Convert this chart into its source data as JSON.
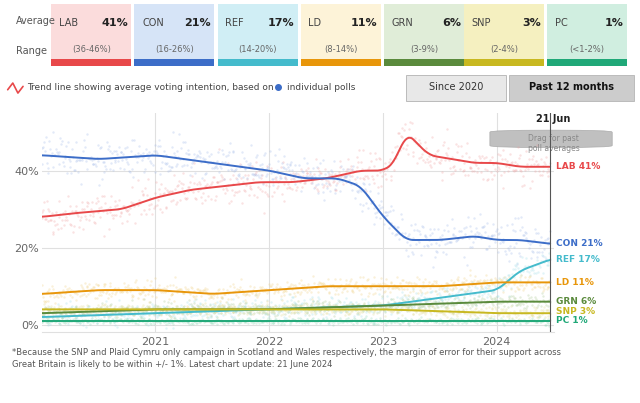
{
  "parties": [
    "LAB",
    "CON",
    "REF",
    "LD",
    "GRN",
    "SNP",
    "PC"
  ],
  "averages": [
    41,
    21,
    17,
    11,
    6,
    3,
    1
  ],
  "ranges": [
    "36-46%",
    "16-26%",
    "14-20%",
    "8-14%",
    "3-9%",
    "2-4%",
    "<1-2%"
  ],
  "colors": {
    "LAB": "#E8484A",
    "CON": "#3C6DC8",
    "REF": "#44BBCC",
    "LD": "#E8960A",
    "GRN": "#5A8A3C",
    "SNP": "#C8B820",
    "PC": "#20A878"
  },
  "dot_colors": {
    "LAB": "#F0A0A0",
    "CON": "#A0B8E8",
    "REF": "#A0DDE8",
    "LD": "#F0D080",
    "GRN": "#A8C890",
    "SNP": "#E0D890",
    "PC": "#90D8B8"
  },
  "bg_colors": {
    "LAB": "#FBDCDC",
    "CON": "#D6E4F7",
    "REF": "#D0EEF5",
    "LD": "#FDF3D8",
    "GRN": "#E0EDD8",
    "SNP": "#F5F0C0",
    "PC": "#D0EEE0"
  },
  "bar_colors": {
    "LAB": "#E8484A",
    "CON": "#3C6DC8",
    "REF": "#44BBCC",
    "LD": "#E8960A",
    "GRN": "#5A8A3C",
    "SNP": "#C8B820",
    "PC": "#20A878"
  },
  "footnote": "*Because the SNP and Plaid Cymru only campaign in Scotland and Wales respectively, the margin of error for their support across\nGreat Britain is likely to be within +/- 1%. Latest chart update: 21 June 2024",
  "since2020_label": "Since 2020",
  "past12_label": "Past 12 months",
  "background_chart": "#FFFFFF",
  "background_page": "#FFFFFF"
}
